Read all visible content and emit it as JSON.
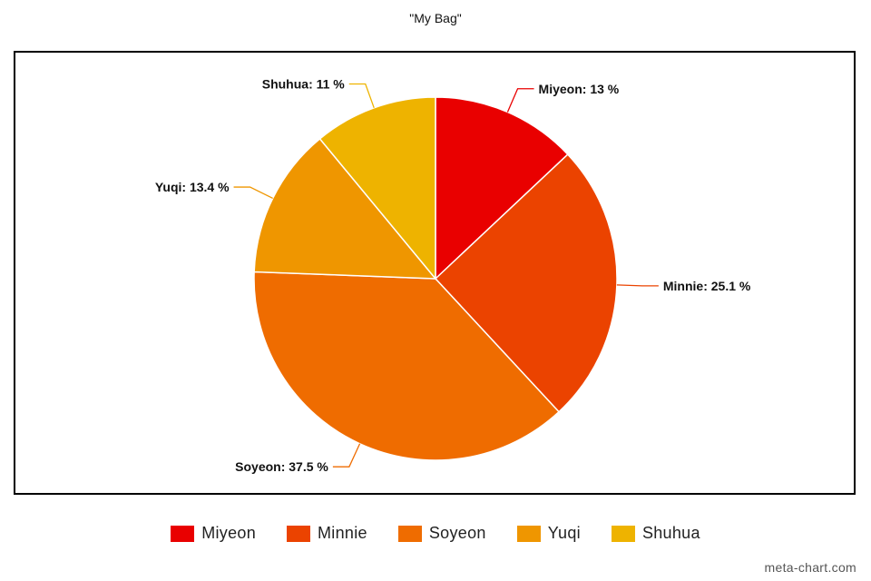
{
  "chart_data": {
    "type": "pie",
    "title": "\"My Bag\"",
    "unit": "%",
    "slices": [
      {
        "label": "Miyeon",
        "value": 13,
        "display": "Miyeon: 13 %",
        "color": "#E90000"
      },
      {
        "label": "Minnie",
        "value": 25.1,
        "display": "Minnie: 25.1 %",
        "color": "#EB4300"
      },
      {
        "label": "Soyeon",
        "value": 37.5,
        "display": "Soyeon: 37.5 %",
        "color": "#EF6C00"
      },
      {
        "label": "Yuqi",
        "value": 13.4,
        "display": "Yuqi: 13.4 %",
        "color": "#EF9600"
      },
      {
        "label": "Shuhua",
        "value": 11,
        "display": "Shuhua: 11 %",
        "color": "#EEB300"
      }
    ],
    "start_angle": "top",
    "direction": "clockwise",
    "legend_position": "bottom"
  },
  "legend": {
    "items": [
      {
        "label": "Miyeon",
        "color": "#E90000"
      },
      {
        "label": "Minnie",
        "color": "#EB4300"
      },
      {
        "label": "Soyeon",
        "color": "#EF6C00"
      },
      {
        "label": "Yuqi",
        "color": "#EF9600"
      },
      {
        "label": "Shuhua",
        "color": "#EEB300"
      }
    ]
  },
  "watermark": "meta-chart.com"
}
